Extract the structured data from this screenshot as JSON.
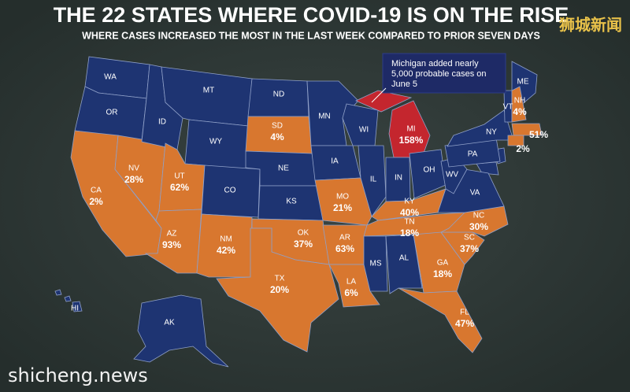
{
  "title": "THE 22 STATES WHERE COVID-19 IS ON THE RISE",
  "subtitle": "WHERE CASES INCREASED THE MOST IN THE LAST WEEK COMPARED TO PRIOR SEVEN DAYS",
  "watermark_cn": "狮城新闻",
  "watermark_url": "shicheng.news",
  "annotation": {
    "lines": [
      "Michigan added nearly",
      "5,000 probable cases on",
      "June 5"
    ]
  },
  "colors": {
    "rising": "#d8772f",
    "steady": "#1e3472",
    "highlight": "#c4262e"
  },
  "states": [
    {
      "abbr": "WA"
    },
    {
      "abbr": "OR"
    },
    {
      "abbr": "CA",
      "change": "2%"
    },
    {
      "abbr": "NV",
      "change": "28%"
    },
    {
      "abbr": "ID"
    },
    {
      "abbr": "MT"
    },
    {
      "abbr": "WY"
    },
    {
      "abbr": "UT",
      "change": "62%"
    },
    {
      "abbr": "AZ",
      "change": "93%"
    },
    {
      "abbr": "CO"
    },
    {
      "abbr": "NM",
      "change": "42%"
    },
    {
      "abbr": "ND"
    },
    {
      "abbr": "SD",
      "change": "4%"
    },
    {
      "abbr": "NE"
    },
    {
      "abbr": "KS"
    },
    {
      "abbr": "OK",
      "change": "37%"
    },
    {
      "abbr": "TX",
      "change": "20%"
    },
    {
      "abbr": "MN"
    },
    {
      "abbr": "IA"
    },
    {
      "abbr": "MO",
      "change": "21%"
    },
    {
      "abbr": "AR",
      "change": "63%"
    },
    {
      "abbr": "LA",
      "change": "6%"
    },
    {
      "abbr": "WI"
    },
    {
      "abbr": "IL"
    },
    {
      "abbr": "MI",
      "change": "158%",
      "highlight": true
    },
    {
      "abbr": "IN"
    },
    {
      "abbr": "OH"
    },
    {
      "abbr": "KY",
      "change": "40%"
    },
    {
      "abbr": "TN",
      "change": "18%"
    },
    {
      "abbr": "MS"
    },
    {
      "abbr": "AL"
    },
    {
      "abbr": "GA",
      "change": "18%"
    },
    {
      "abbr": "FL",
      "change": "47%"
    },
    {
      "abbr": "SC",
      "change": "37%"
    },
    {
      "abbr": "NC",
      "change": "30%"
    },
    {
      "abbr": "VA"
    },
    {
      "abbr": "WV"
    },
    {
      "abbr": "PA"
    },
    {
      "abbr": "NY"
    },
    {
      "abbr": "ME"
    },
    {
      "abbr": "VT"
    },
    {
      "abbr": "NH",
      "change": "4%"
    },
    {
      "change": "51%"
    },
    {
      "change": "2%"
    },
    {
      "abbr": "AK"
    },
    {
      "abbr": "HI"
    }
  ]
}
